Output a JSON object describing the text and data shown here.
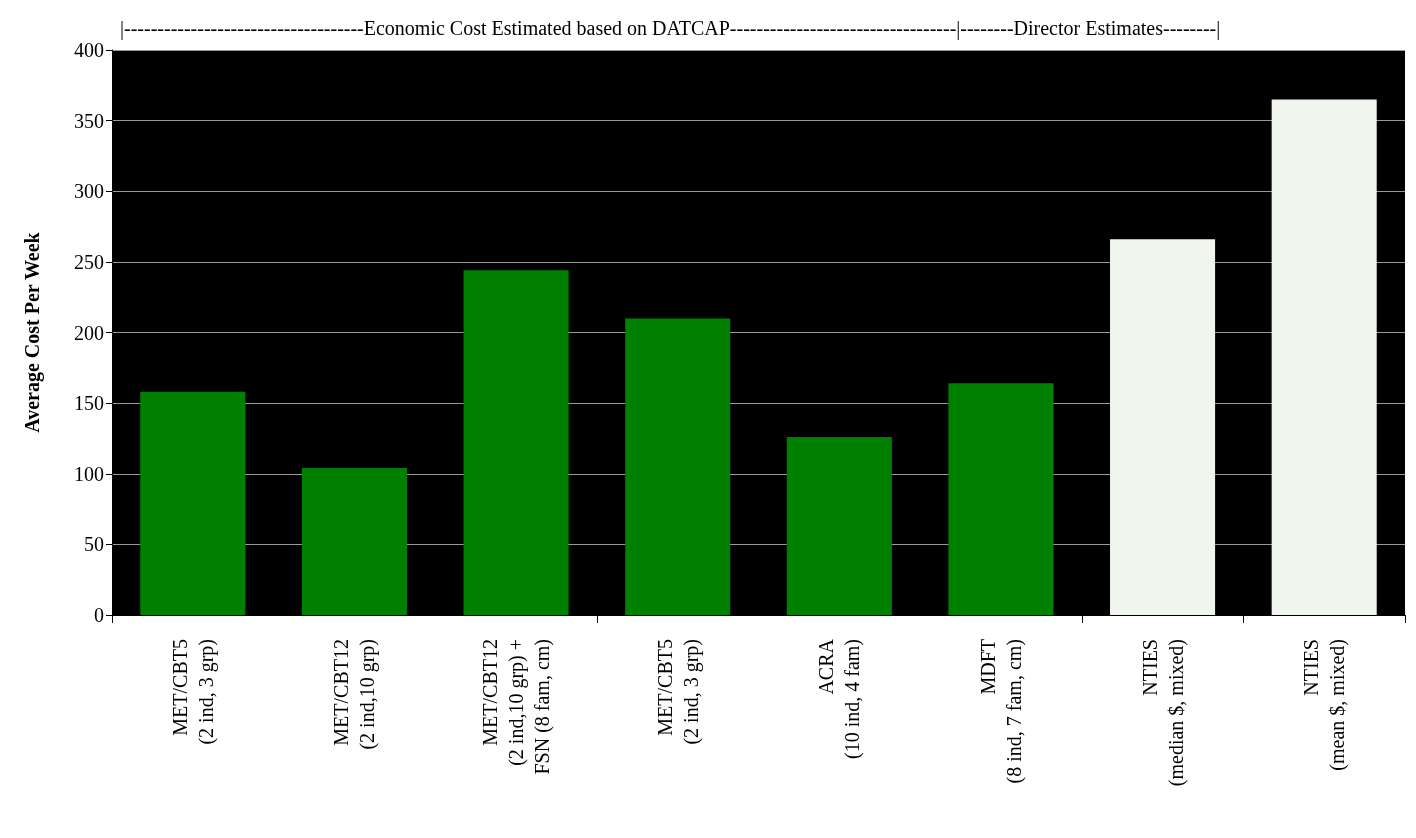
{
  "chart_data": {
    "type": "bar",
    "ylabel": "Average Cost Per Week",
    "annotations": [
      "|------------------------------------Economic Cost Estimated based on DATCAP----------------------------------|--------Director Estimates--------|"
    ],
    "categories": [
      "MET/CBT5\n(2 ind, 3 grp)",
      "MET/CBT12\n(2 ind,10 grp)",
      "MET/CBT12\n(2 ind,10 grp) +\nFSN (8 fam, cm)",
      "MET/CBT5\n(2 ind, 3 grp)",
      "ACRA\n(10 ind, 4 fam)",
      "MDFT\n(8 ind, 7 fam, cm)",
      "NTIES\n(median $, mixed)",
      "NTIES\n(mean $, mixed)"
    ],
    "values": [
      158,
      104,
      244,
      210,
      126,
      164,
      266,
      365
    ],
    "colors": [
      "#008000",
      "#008000",
      "#008000",
      "#008000",
      "#008000",
      "#008000",
      "#f0f5ee",
      "#f0f5ee"
    ],
    "ylim": [
      0,
      400
    ],
    "yticks": [
      0,
      50,
      100,
      150,
      200,
      250,
      300,
      350,
      400
    ],
    "grid": "y"
  }
}
